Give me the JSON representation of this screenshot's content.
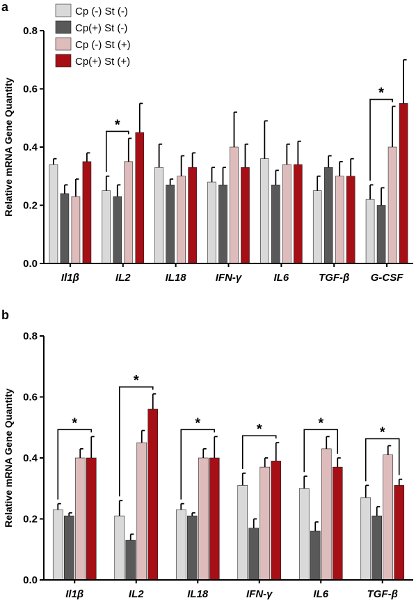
{
  "legend": [
    {
      "name": "Cp (-)  St  (-)",
      "color": "#d9d9d9"
    },
    {
      "name": "Cp(+) St  (-)",
      "color": "#595959"
    },
    {
      "name": "Cp (-)  St (+)",
      "color": "#dfbcbc"
    },
    {
      "name": "Cp(+) St (+)",
      "color": "#a50f15"
    }
  ],
  "chart_data": [
    {
      "type": "bar",
      "panel": "a",
      "ylabel": "Relative mRNA Gene Quantity",
      "ylim": [
        0,
        0.8
      ],
      "yticks": [
        "0.0",
        "0.2",
        "0.4",
        "0.6",
        "0.8"
      ],
      "categories": [
        "Il1β",
        "IL2",
        "IL18",
        "IFN-γ",
        "IL6",
        "TGF-β",
        "G-CSF"
      ],
      "series": [
        {
          "name": "Cp (-)  St  (-)",
          "values": [
            0.34,
            0.25,
            0.33,
            0.28,
            0.36,
            0.25,
            0.22
          ],
          "errors": [
            0.02,
            0.05,
            0.08,
            0.05,
            0.13,
            0.05,
            0.05
          ]
        },
        {
          "name": "Cp(+) St  (-)",
          "values": [
            0.24,
            0.23,
            0.27,
            0.27,
            0.27,
            0.33,
            0.2
          ],
          "errors": [
            0.03,
            0.04,
            0.02,
            0.06,
            0.05,
            0.04,
            0.06
          ]
        },
        {
          "name": "Cp (-)  St (+)",
          "values": [
            0.23,
            0.35,
            0.3,
            0.4,
            0.34,
            0.3,
            0.4
          ],
          "errors": [
            0.06,
            0.08,
            0.07,
            0.12,
            0.07,
            0.05,
            0.14
          ]
        },
        {
          "name": "Cp(+) St (+)",
          "values": [
            0.35,
            0.45,
            0.33,
            0.33,
            0.34,
            0.3,
            0.55
          ],
          "errors": [
            0.03,
            0.1,
            0.05,
            0.08,
            0.08,
            0.06,
            0.15
          ]
        }
      ],
      "significance": [
        {
          "category": 1,
          "from_series": 0,
          "to_series": 2,
          "label": "*"
        },
        {
          "category": 6,
          "from_series": 0,
          "to_series": 2,
          "label": "*"
        }
      ]
    },
    {
      "type": "bar",
      "panel": "b",
      "ylabel": "Relative mRNA Gene Quantity",
      "ylim": [
        0,
        0.8
      ],
      "yticks": [
        "0.0",
        "0.2",
        "0.4",
        "0.6",
        "0.8"
      ],
      "categories": [
        "Il1β",
        "IL2",
        "IL18",
        "IFN-γ",
        "IL6",
        "TGF-β"
      ],
      "series": [
        {
          "name": "Cp (-)  St  (-)",
          "values": [
            0.23,
            0.21,
            0.23,
            0.31,
            0.3,
            0.27
          ],
          "errors": [
            0.02,
            0.05,
            0.02,
            0.04,
            0.04,
            0.04
          ]
        },
        {
          "name": "Cp(+) St  (-)",
          "values": [
            0.21,
            0.13,
            0.21,
            0.17,
            0.16,
            0.21
          ],
          "errors": [
            0.01,
            0.02,
            0.01,
            0.03,
            0.03,
            0.03
          ]
        },
        {
          "name": "Cp (-)  St (+)",
          "values": [
            0.4,
            0.45,
            0.4,
            0.37,
            0.43,
            0.41
          ],
          "errors": [
            0.03,
            0.04,
            0.03,
            0.03,
            0.04,
            0.03
          ]
        },
        {
          "name": "Cp(+) St (+)",
          "values": [
            0.4,
            0.56,
            0.4,
            0.39,
            0.37,
            0.31
          ],
          "errors": [
            0.07,
            0.05,
            0.07,
            0.06,
            0.03,
            0.02
          ]
        }
      ],
      "significance": [
        {
          "category": 0,
          "from_series": 0,
          "to_series": 3,
          "label": "*"
        },
        {
          "category": 1,
          "from_series": 0,
          "to_series": 3,
          "label": "*"
        },
        {
          "category": 2,
          "from_series": 0,
          "to_series": 3,
          "label": "*"
        },
        {
          "category": 3,
          "from_series": 0,
          "to_series": 3,
          "label": "*"
        },
        {
          "category": 4,
          "from_series": 0,
          "to_series": 3,
          "label": "*"
        },
        {
          "category": 5,
          "from_series": 0,
          "to_series": 3,
          "label": "*"
        }
      ]
    }
  ]
}
